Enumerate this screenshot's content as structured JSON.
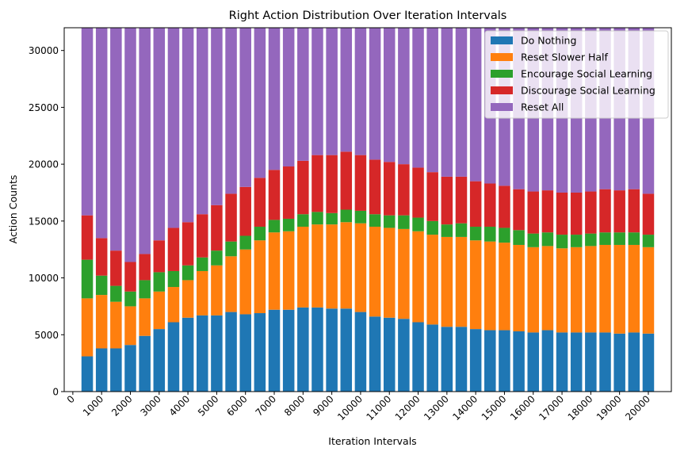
{
  "chart_data": {
    "type": "bar",
    "stacked": true,
    "title": "Right Action Distribution Over Iteration Intervals",
    "xlabel": "Iteration Intervals",
    "ylabel": "Action Counts",
    "xlim": [
      -300,
      20800
    ],
    "ylim": [
      0,
      32000
    ],
    "x_ticks": [
      0,
      1000,
      2000,
      3000,
      4000,
      5000,
      6000,
      7000,
      8000,
      9000,
      10000,
      11000,
      12000,
      13000,
      14000,
      15000,
      16000,
      17000,
      18000,
      19000,
      20000
    ],
    "y_ticks": [
      0,
      5000,
      10000,
      15000,
      20000,
      25000,
      30000
    ],
    "x": [
      500,
      1000,
      1500,
      2000,
      2500,
      3000,
      3500,
      4000,
      4500,
      5000,
      5500,
      6000,
      6500,
      7000,
      7500,
      8000,
      8500,
      9000,
      9500,
      10000,
      10500,
      11000,
      11500,
      12000,
      12500,
      13000,
      13500,
      14000,
      14500,
      15000,
      15500,
      16000,
      16500,
      17000,
      17500,
      18000,
      18500,
      19000,
      19500,
      20000
    ],
    "bar_width": 400,
    "legend_position": "top-right",
    "series": [
      {
        "name": "Do Nothing",
        "color": "#1f77b4",
        "values": [
          3100,
          3800,
          3800,
          4100,
          4900,
          5500,
          6100,
          6500,
          6700,
          6700,
          7000,
          6800,
          6900,
          7200,
          7200,
          7400,
          7400,
          7300,
          7300,
          7000,
          6600,
          6500,
          6400,
          6100,
          5900,
          5700,
          5700,
          5500,
          5400,
          5400,
          5300,
          5200,
          5400,
          5200,
          5200,
          5200,
          5200,
          5100,
          5200,
          5100
        ]
      },
      {
        "name": "Reset Slower Half",
        "color": "#ff7f0e",
        "values": [
          5100,
          4700,
          4100,
          3400,
          3300,
          3300,
          3100,
          3300,
          3900,
          4400,
          4900,
          5700,
          6400,
          6800,
          6900,
          7100,
          7300,
          7400,
          7600,
          7800,
          7900,
          7900,
          7900,
          8000,
          7900,
          7900,
          7900,
          7800,
          7800,
          7700,
          7600,
          7500,
          7400,
          7400,
          7500,
          7600,
          7700,
          7800,
          7700,
          7600
        ]
      },
      {
        "name": "Encourage Social Learning",
        "color": "#2ca02c",
        "values": [
          3400,
          1700,
          1400,
          1300,
          1600,
          1700,
          1400,
          1300,
          1200,
          1300,
          1300,
          1200,
          1200,
          1100,
          1100,
          1100,
          1100,
          1000,
          1100,
          1100,
          1100,
          1100,
          1200,
          1200,
          1200,
          1100,
          1200,
          1200,
          1300,
          1300,
          1300,
          1200,
          1200,
          1200,
          1100,
          1100,
          1100,
          1100,
          1100,
          1100
        ]
      },
      {
        "name": "Discourage Social Learning",
        "color": "#d62728",
        "values": [
          3900,
          3300,
          3100,
          2600,
          2300,
          2800,
          3800,
          3800,
          3800,
          4000,
          4200,
          4300,
          4300,
          4400,
          4600,
          4700,
          5000,
          5100,
          5100,
          4900,
          4800,
          4700,
          4500,
          4400,
          4300,
          4200,
          4100,
          4000,
          3800,
          3700,
          3600,
          3700,
          3700,
          3700,
          3700,
          3700,
          3800,
          3700,
          3800,
          3600
        ]
      },
      {
        "name": "Reset All",
        "color": "#9467bd",
        "values": [
          16500,
          18500,
          19600,
          20600,
          19900,
          18700,
          17600,
          17100,
          16400,
          15600,
          14600,
          14000,
          13200,
          12500,
          12200,
          11700,
          11200,
          11200,
          10900,
          11200,
          11600,
          11800,
          12000,
          12300,
          12700,
          13100,
          13100,
          13500,
          13700,
          13900,
          14200,
          14400,
          14300,
          14500,
          14500,
          14400,
          14200,
          14300,
          14200,
          14600
        ]
      }
    ]
  }
}
